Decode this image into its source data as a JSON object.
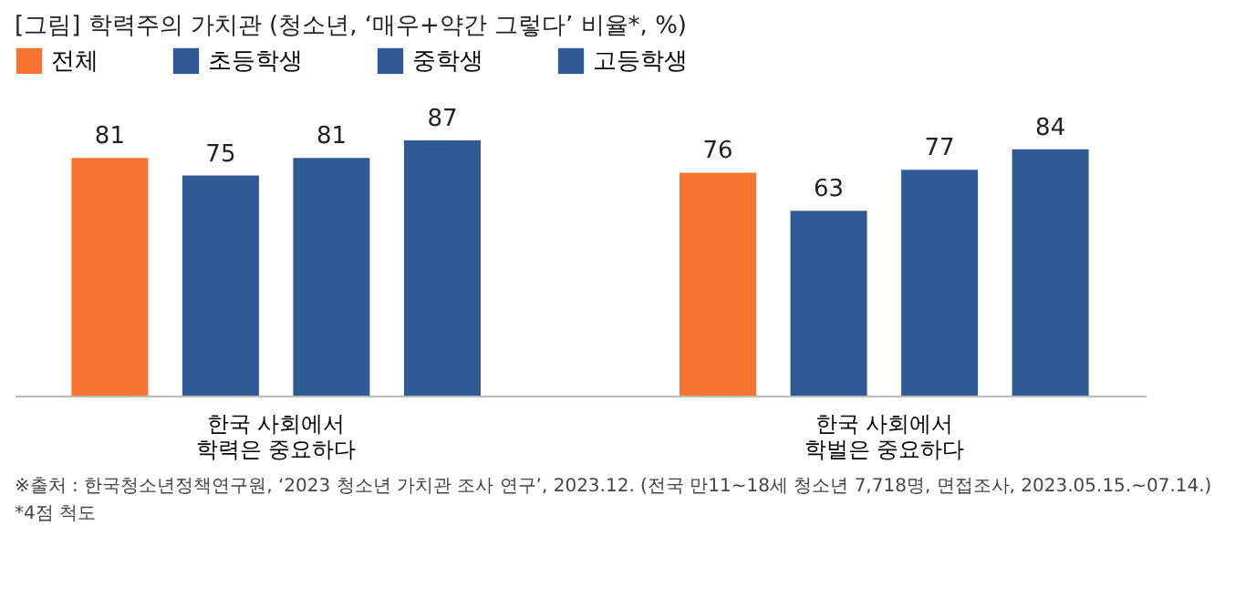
{
  "chart_data": {
    "type": "bar",
    "title": "[그림] 학력주의 가치관 (청소년, ‘매우+약간 그렇다’ 비율*, %)",
    "categories": [
      "한국 사회에서\n학력은 중요하다",
      "한국 사회에서\n학벌은 중요하다"
    ],
    "series": [
      {
        "name": "전체",
        "color": "#f97430",
        "values": [
          81,
          76
        ]
      },
      {
        "name": "초등학생",
        "color": "#2f5a96",
        "values": [
          75,
          63
        ]
      },
      {
        "name": "중학생",
        "color": "#2f5a96",
        "values": [
          81,
          77
        ]
      },
      {
        "name": "고등학생",
        "color": "#2f5a96",
        "values": [
          87,
          84
        ]
      }
    ],
    "data_labels": true,
    "legend": "top",
    "grid": false,
    "annotations": [
      "※출처 : 한국청소년정책연구원, ‘2023 청소년 가치관 조사 연구’, 2023.12. (전국 만11~18세 청소년 7,718명, 면접조사, 2023.05.15.~07.14.)",
      "*4점 척도"
    ]
  }
}
